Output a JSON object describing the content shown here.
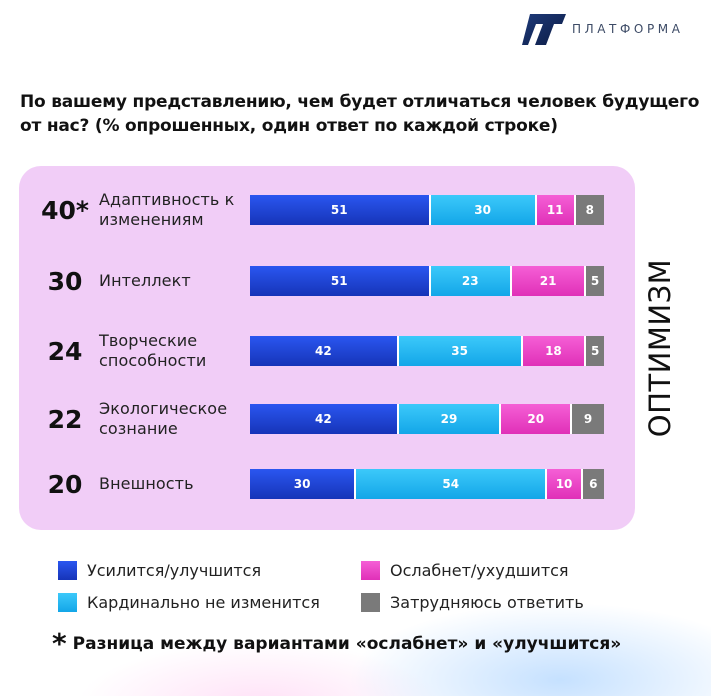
{
  "brand": {
    "name": "ПЛАТФОРМА"
  },
  "title": "По вашему представлению, чем будет отличаться человек будущего от нас? (% опрошенных, один ответ по каждой строке)",
  "side_label": "ОПТИМИЗМ",
  "footnote": {
    "mark": "*",
    "text": "Разница между вариантами «ослабнет» и «улучшится»"
  },
  "colors": {
    "improve": "#1b3fd9",
    "unchanged": "#1ab6f2",
    "weaken": "#ee3fc5",
    "unsure": "#7a7a7a",
    "panel": "#f1cdf7"
  },
  "chart_data": {
    "type": "bar",
    "orientation": "horizontal",
    "stacked": true,
    "title": "По вашему представлению, чем будет отличаться человек будущего от нас? (% опрошенных, один ответ по каждой строке)",
    "categories": [
      "Адаптивность к изменениям",
      "Интеллект",
      "Творческие способности",
      "Экологическое сознание",
      "Внешность"
    ],
    "scores": [
      "40*",
      "30",
      "24",
      "22",
      "20"
    ],
    "series": [
      {
        "key": "improve",
        "name": "Усилится/улучшится",
        "values": [
          51,
          51,
          42,
          42,
          30
        ]
      },
      {
        "key": "unchanged",
        "name": "Кардинально не изменится",
        "values": [
          30,
          23,
          35,
          29,
          54
        ]
      },
      {
        "key": "weaken",
        "name": "Ослабнет/ухудшится",
        "values": [
          11,
          21,
          18,
          20,
          10
        ]
      },
      {
        "key": "unsure",
        "name": "Затрудняюсь ответить",
        "values": [
          8,
          5,
          5,
          9,
          6
        ]
      }
    ],
    "xlim": [
      0,
      100
    ],
    "legend_position": "bottom"
  }
}
